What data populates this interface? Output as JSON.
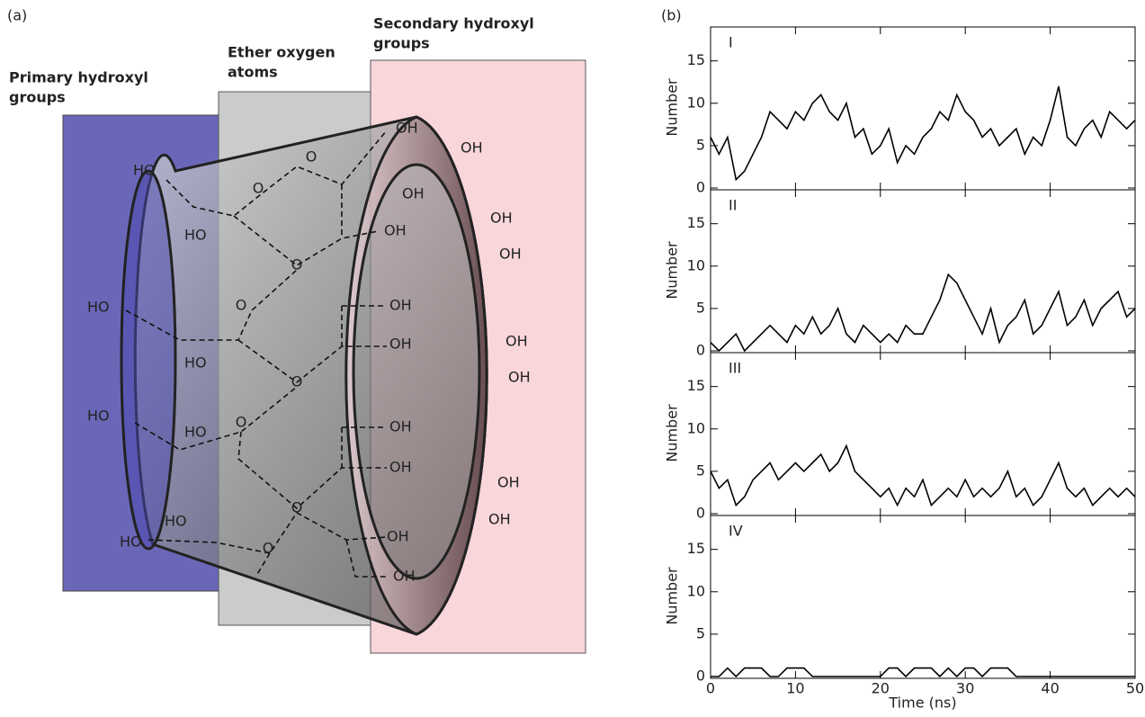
{
  "diagram": {
    "panel_label": "(a)",
    "primary_label": [
      "Primary hydroxyl",
      "groups"
    ],
    "ether_label": [
      "Ether oxygen",
      "atoms"
    ],
    "secondary_label": [
      "Secondary hydroxyl",
      "groups"
    ],
    "ho_labels": [
      "HO",
      "HO",
      "HO",
      "HO",
      "HO",
      "HO",
      "HO",
      "HO"
    ],
    "oh_labels": [
      "OH",
      "OH",
      "OH",
      "OH",
      "OH",
      "OH",
      "OH",
      "OH",
      "OH",
      "OH",
      "OH",
      "OH",
      "OH",
      "OH",
      "OH",
      "OH"
    ],
    "o_labels": [
      "O",
      "O",
      "O",
      "O",
      "O",
      "O",
      "O",
      "O"
    ]
  },
  "panel_label_b": "(b)",
  "chart_data": [
    {
      "type": "line",
      "label": "I",
      "ylabel": "Number",
      "color": "#000000",
      "x": [
        0,
        1,
        2,
        3,
        4,
        5,
        6,
        7,
        8,
        9,
        10,
        11,
        12,
        13,
        14,
        15,
        16,
        17,
        18,
        19,
        20,
        21,
        22,
        23,
        24,
        25,
        26,
        27,
        28,
        29,
        30,
        31,
        32,
        33,
        34,
        35,
        36,
        37,
        38,
        39,
        40,
        41,
        42,
        43,
        44,
        45,
        46,
        47,
        48,
        49,
        50
      ],
      "values": [
        6,
        4,
        6,
        1,
        2,
        4,
        6,
        9,
        8,
        7,
        9,
        8,
        10,
        11,
        9,
        8,
        10,
        6,
        7,
        4,
        5,
        7,
        3,
        5,
        4,
        6,
        7,
        9,
        8,
        11,
        9,
        8,
        6,
        7,
        5,
        6,
        7,
        4,
        6,
        5,
        8,
        12,
        6,
        5,
        7,
        8,
        6,
        9,
        8,
        7,
        8
      ],
      "xlim": [
        0,
        50
      ],
      "ylim": [
        0,
        19
      ],
      "xticks": [
        0,
        10,
        20,
        30,
        40,
        50
      ],
      "yticks": [
        0,
        5,
        10,
        15
      ]
    },
    {
      "type": "line",
      "label": "II",
      "ylabel": "Number",
      "color": "#000000",
      "x": [
        0,
        1,
        2,
        3,
        4,
        5,
        6,
        7,
        8,
        9,
        10,
        11,
        12,
        13,
        14,
        15,
        16,
        17,
        18,
        19,
        20,
        21,
        22,
        23,
        24,
        25,
        26,
        27,
        28,
        29,
        30,
        31,
        32,
        33,
        34,
        35,
        36,
        37,
        38,
        39,
        40,
        41,
        42,
        43,
        44,
        45,
        46,
        47,
        48,
        49,
        50
      ],
      "values": [
        1,
        0,
        1,
        2,
        0,
        1,
        2,
        3,
        2,
        1,
        3,
        2,
        4,
        2,
        3,
        5,
        2,
        1,
        3,
        2,
        1,
        2,
        1,
        3,
        2,
        2,
        4,
        6,
        9,
        8,
        6,
        4,
        2,
        5,
        1,
        3,
        4,
        6,
        2,
        3,
        5,
        7,
        3,
        4,
        6,
        3,
        5,
        6,
        7,
        4,
        5
      ],
      "xlim": [
        0,
        50
      ],
      "ylim": [
        0,
        19
      ],
      "xticks": [
        0,
        10,
        20,
        30,
        40,
        50
      ],
      "yticks": [
        0,
        5,
        10,
        15
      ]
    },
    {
      "type": "line",
      "label": "III",
      "ylabel": "Number",
      "color": "#000000",
      "x": [
        0,
        1,
        2,
        3,
        4,
        5,
        6,
        7,
        8,
        9,
        10,
        11,
        12,
        13,
        14,
        15,
        16,
        17,
        18,
        19,
        20,
        21,
        22,
        23,
        24,
        25,
        26,
        27,
        28,
        29,
        30,
        31,
        32,
        33,
        34,
        35,
        36,
        37,
        38,
        39,
        40,
        41,
        42,
        43,
        44,
        45,
        46,
        47,
        48,
        49,
        50
      ],
      "values": [
        5,
        3,
        4,
        1,
        2,
        4,
        5,
        6,
        4,
        5,
        6,
        5,
        6,
        7,
        5,
        6,
        8,
        5,
        4,
        3,
        2,
        3,
        1,
        3,
        2,
        4,
        1,
        2,
        3,
        2,
        4,
        2,
        3,
        2,
        3,
        5,
        2,
        3,
        1,
        2,
        4,
        6,
        3,
        2,
        3,
        1,
        2,
        3,
        2,
        3,
        2
      ],
      "xlim": [
        0,
        50
      ],
      "ylim": [
        0,
        19
      ],
      "xticks": [
        0,
        10,
        20,
        30,
        40,
        50
      ],
      "yticks": [
        0,
        5,
        10,
        15
      ]
    },
    {
      "type": "line",
      "label": "IV",
      "ylabel": "Number",
      "xlabel": "Time (ns)",
      "color": "#000000",
      "x": [
        0,
        1,
        2,
        3,
        4,
        5,
        6,
        7,
        8,
        9,
        10,
        11,
        12,
        13,
        14,
        15,
        16,
        17,
        18,
        19,
        20,
        21,
        22,
        23,
        24,
        25,
        26,
        27,
        28,
        29,
        30,
        31,
        32,
        33,
        34,
        35,
        36,
        37,
        38,
        39,
        40,
        41,
        42,
        43,
        44,
        45,
        46,
        47,
        48,
        49,
        50
      ],
      "values": [
        0,
        0,
        1,
        0,
        1,
        1,
        1,
        0,
        0,
        1,
        1,
        1,
        0,
        0,
        0,
        0,
        0,
        0,
        0,
        0,
        0,
        1,
        1,
        0,
        1,
        1,
        1,
        0,
        1,
        0,
        1,
        1,
        0,
        1,
        1,
        1,
        0,
        0,
        0,
        0,
        0,
        0,
        0,
        0,
        0,
        0,
        0,
        0,
        0,
        0,
        0
      ],
      "xlim": [
        0,
        50
      ],
      "ylim": [
        0,
        19
      ],
      "xticks": [
        0,
        10,
        20,
        30,
        40,
        50
      ],
      "yticks": [
        0,
        5,
        10,
        15
      ]
    }
  ]
}
